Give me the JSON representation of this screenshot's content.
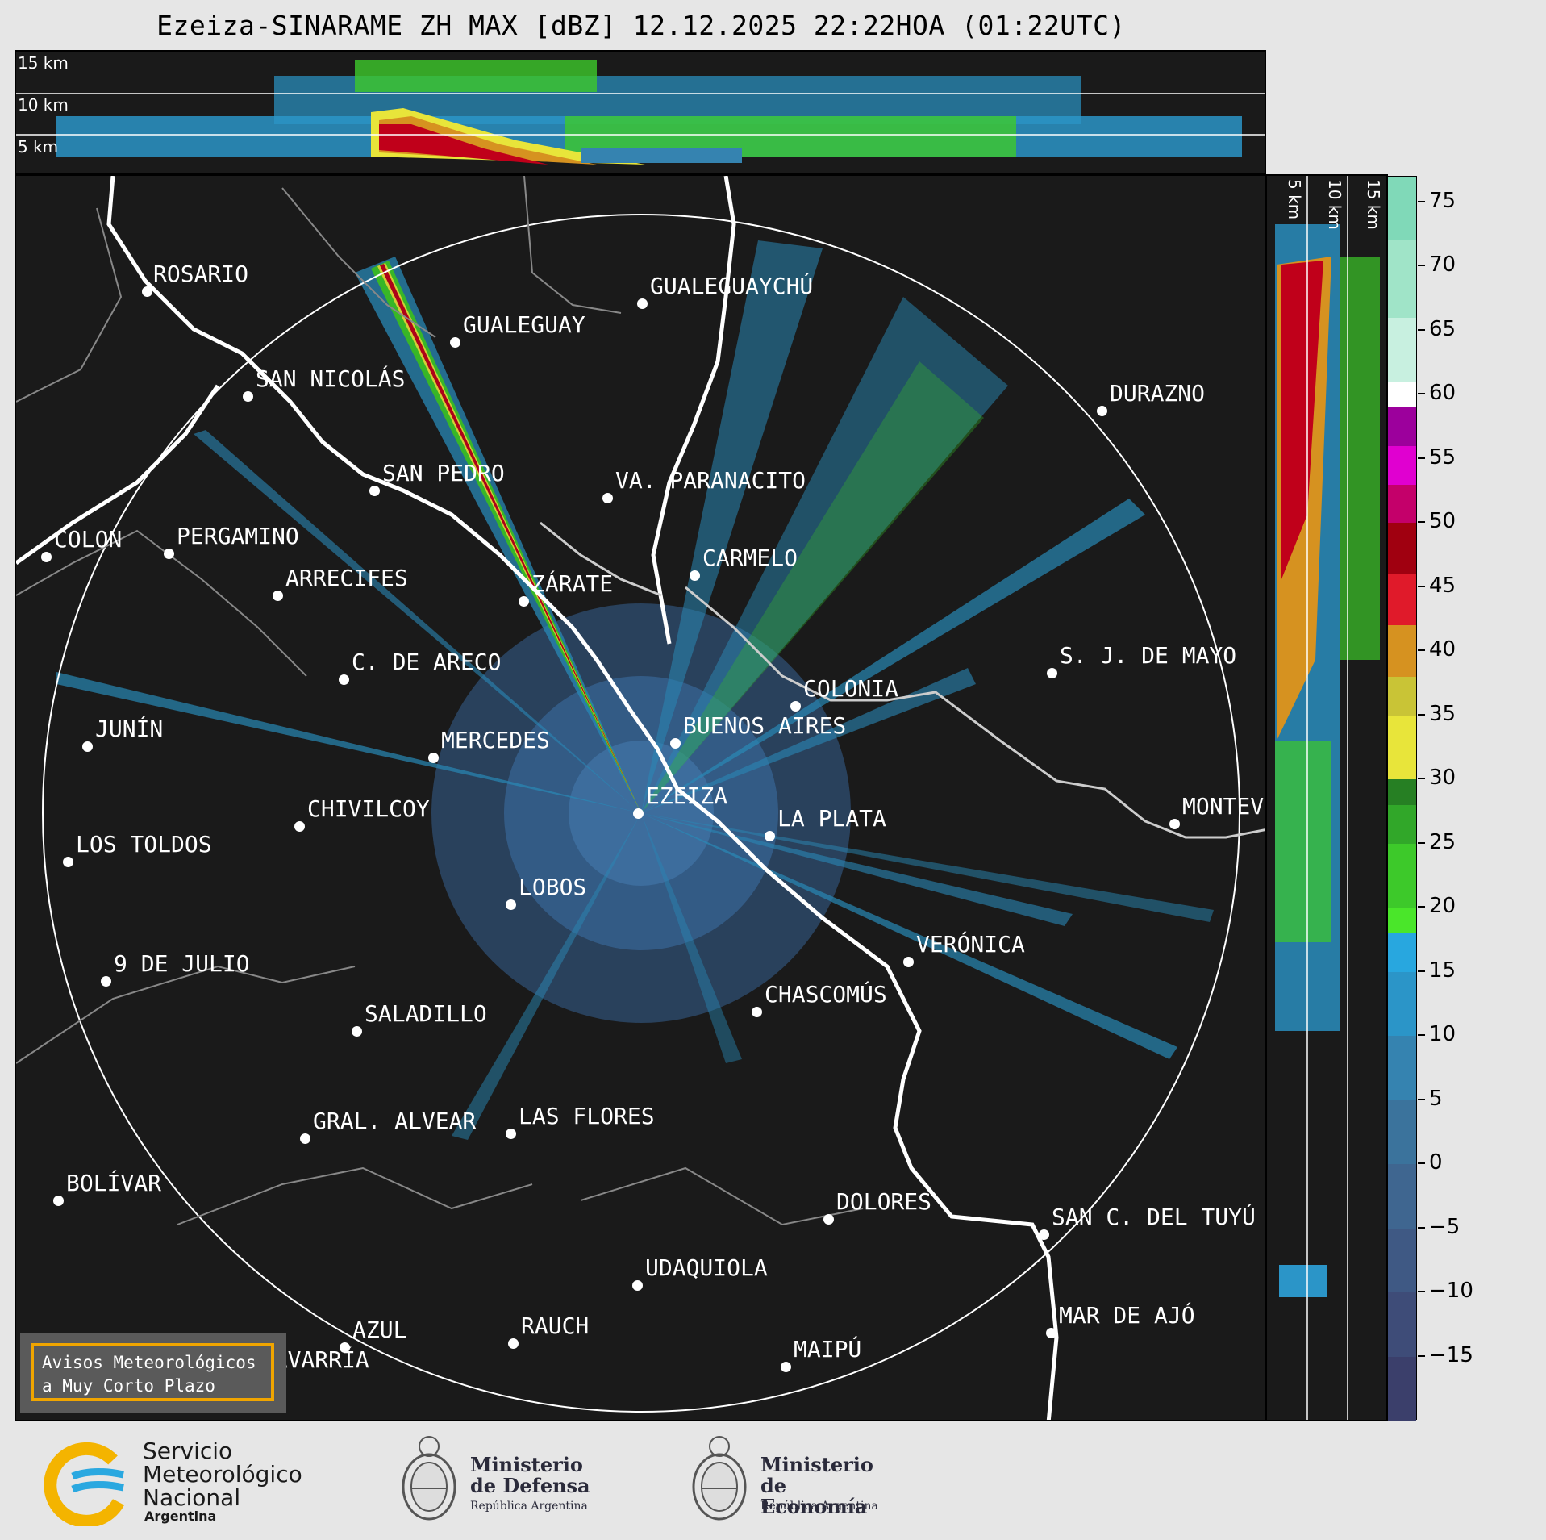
{
  "title": "Ezeiza-SINARAME ZH MAX [dBZ] 12.12.2025 22:22HOA (01:22UTC)",
  "top_panel": {
    "height_labels": [
      "15 km",
      "10 km",
      "5 km"
    ]
  },
  "side_panel": {
    "height_labels": [
      "5 km",
      "10 km",
      "15 km"
    ]
  },
  "cities": [
    {
      "name": "ROSARIO"
    },
    {
      "name": "GUALEGUAYCHÚ"
    },
    {
      "name": "GUALEGUAY"
    },
    {
      "name": "SAN NICOLÁS"
    },
    {
      "name": "DURAZNO"
    },
    {
      "name": "SAN PEDRO"
    },
    {
      "name": "VA. PARANACITO"
    },
    {
      "name": "COLON"
    },
    {
      "name": "PERGAMINO"
    },
    {
      "name": "CARMELO"
    },
    {
      "name": "ARRECIFES"
    },
    {
      "name": "ZÁRATE"
    },
    {
      "name": "S. J. DE MAYO"
    },
    {
      "name": "C. DE ARECO"
    },
    {
      "name": "COLONIA"
    },
    {
      "name": "JUNÍN"
    },
    {
      "name": "BUENOS AIRES"
    },
    {
      "name": "MERCEDES"
    },
    {
      "name": "EZEIZA"
    },
    {
      "name": "MONTEV"
    },
    {
      "name": "CHIVILCOY"
    },
    {
      "name": "LA PLATA"
    },
    {
      "name": "LOS TOLDOS"
    },
    {
      "name": "LOBOS"
    },
    {
      "name": "VERÓNICA"
    },
    {
      "name": "9 DE JULIO"
    },
    {
      "name": "CHASCOMÚS"
    },
    {
      "name": "SALADILLO"
    },
    {
      "name": "GRAL. ALVEAR"
    },
    {
      "name": "LAS FLORES"
    },
    {
      "name": "BOLÍVAR"
    },
    {
      "name": "DOLORES"
    },
    {
      "name": "SAN C. DEL TUYÚ"
    },
    {
      "name": "UDAQUIOLA"
    },
    {
      "name": "MAR DE AJÓ"
    },
    {
      "name": "AZUL"
    },
    {
      "name": "RAUCH"
    },
    {
      "name": "OLAVARRÍA"
    },
    {
      "name": "MAIPÚ"
    }
  ],
  "colorbar": {
    "unit": "dBZ",
    "min": -20,
    "max": 77,
    "ticks": [
      "75",
      "70",
      "65",
      "60",
      "55",
      "50",
      "45",
      "40",
      "35",
      "30",
      "25",
      "20",
      "15",
      "10",
      "5",
      "0",
      "−5",
      "−10",
      "−15"
    ],
    "bands": [
      {
        "from": -20,
        "to": -15,
        "color": "#3b3f6b"
      },
      {
        "from": -15,
        "to": -10,
        "color": "#3e4c78"
      },
      {
        "from": -10,
        "to": -5,
        "color": "#3f5984"
      },
      {
        "from": -5,
        "to": 0,
        "color": "#3f6690"
      },
      {
        "from": 0,
        "to": 5,
        "color": "#3b739c"
      },
      {
        "from": 5,
        "to": 10,
        "color": "#3583b0"
      },
      {
        "from": 10,
        "to": 15,
        "color": "#2b95c8"
      },
      {
        "from": 15,
        "to": 18,
        "color": "#28a7df"
      },
      {
        "from": 18,
        "to": 20,
        "color": "#4ae62a"
      },
      {
        "from": 20,
        "to": 25,
        "color": "#3dc92a"
      },
      {
        "from": 25,
        "to": 28,
        "color": "#31a729"
      },
      {
        "from": 28,
        "to": 30,
        "color": "#267f23"
      },
      {
        "from": 30,
        "to": 35,
        "color": "#e8e53a"
      },
      {
        "from": 35,
        "to": 38,
        "color": "#c9c436"
      },
      {
        "from": 38,
        "to": 42,
        "color": "#d69220"
      },
      {
        "from": 42,
        "to": 46,
        "color": "#e01a2a"
      },
      {
        "from": 46,
        "to": 50,
        "color": "#a00010"
      },
      {
        "from": 50,
        "to": 53,
        "color": "#c4006a"
      },
      {
        "from": 53,
        "to": 56,
        "color": "#e000d0"
      },
      {
        "from": 56,
        "to": 59,
        "color": "#9c009c"
      },
      {
        "from": 59,
        "to": 61,
        "color": "#ffffff"
      },
      {
        "from": 61,
        "to": 66,
        "color": "#c8f0e0"
      },
      {
        "from": 66,
        "to": 72,
        "color": "#a0e4c8"
      },
      {
        "from": 72,
        "to": 77,
        "color": "#80d9b8"
      }
    ]
  },
  "warning": {
    "line1": "Avisos Meteorológicos",
    "line2": "a Muy Corto Plazo"
  },
  "logos": {
    "smn": {
      "line1": "Servicio",
      "line2": "Meteorológico",
      "line3": "Nacional",
      "line4": "Argentina"
    },
    "defensa": {
      "line1": "Ministerio",
      "line2": "de Defensa",
      "line3": "República Argentina"
    },
    "economia": {
      "line1": "Ministerio",
      "line2": "de Economía",
      "line3": "República Argentina"
    }
  },
  "colors": {
    "background": "#1a1a1a",
    "accent_warning": "#f0a500",
    "smn_blue": "#2aa8e0",
    "smn_yellow": "#f4b400"
  }
}
